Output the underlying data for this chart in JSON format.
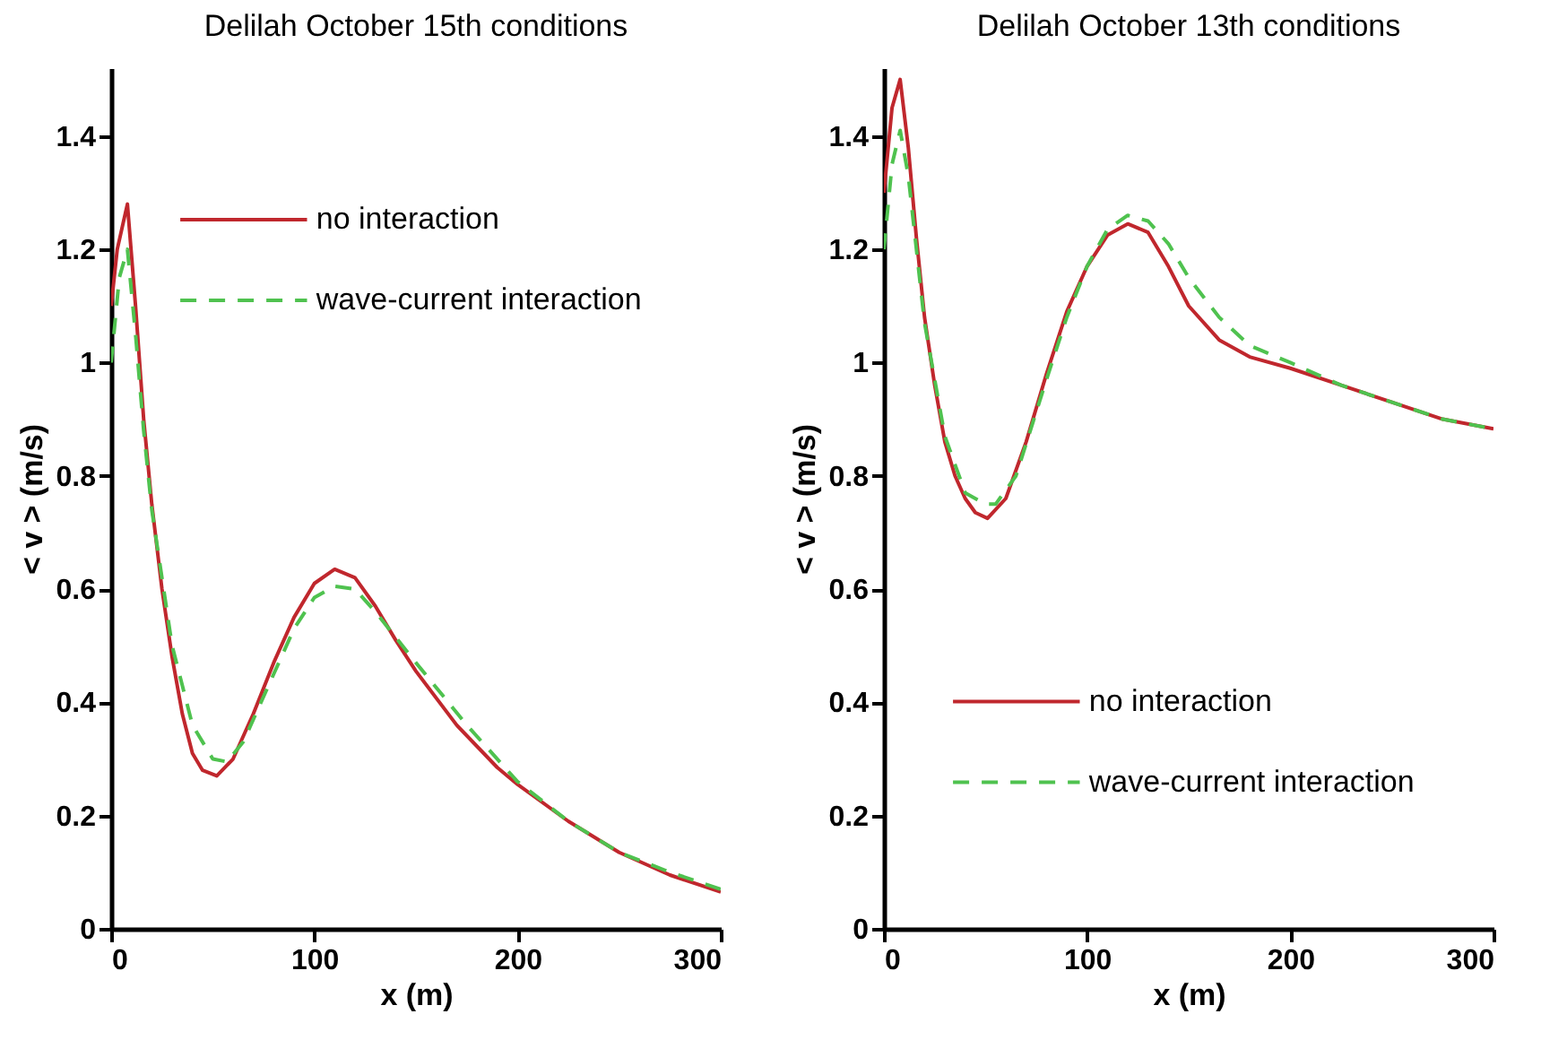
{
  "chart_data": [
    {
      "type": "line",
      "title": "Delilah October 15th conditions",
      "xlabel": "x (m)",
      "ylabel": "< v > (m/s)",
      "xlim": [
        0,
        300
      ],
      "ylim": [
        0,
        1.52
      ],
      "xticks": [
        0,
        100,
        200,
        300
      ],
      "yticks": [
        0,
        0.2,
        0.4,
        0.6,
        0.8,
        1,
        1.2,
        1.4
      ],
      "legend": "top",
      "grid": false,
      "series": [
        {
          "name": "no interaction",
          "color": "#c0272d",
          "line_style": "solid",
          "x": [
            0,
            3,
            8,
            12,
            16,
            20,
            25,
            30,
            35,
            40,
            45,
            52,
            60,
            70,
            80,
            90,
            100,
            110,
            120,
            130,
            140,
            150,
            170,
            190,
            200,
            225,
            250,
            275,
            300
          ],
          "values": [
            1.1,
            1.2,
            1.28,
            1.1,
            0.9,
            0.75,
            0.6,
            0.48,
            0.38,
            0.31,
            0.28,
            0.27,
            0.3,
            0.38,
            0.47,
            0.55,
            0.61,
            0.635,
            0.62,
            0.57,
            0.51,
            0.455,
            0.36,
            0.285,
            0.255,
            0.19,
            0.135,
            0.095,
            0.065
          ]
        },
        {
          "name": "wave-current interaction",
          "color": "#4fc24f",
          "line_style": "dashed",
          "x": [
            0,
            4,
            8,
            12,
            16,
            20,
            30,
            40,
            50,
            57,
            65,
            80,
            90,
            100,
            110,
            120,
            130,
            140,
            150,
            175,
            200,
            225,
            250,
            275,
            300
          ],
          "values": [
            1.0,
            1.15,
            1.2,
            1.05,
            0.88,
            0.74,
            0.5,
            0.36,
            0.3,
            0.295,
            0.33,
            0.45,
            0.53,
            0.585,
            0.605,
            0.6,
            0.56,
            0.515,
            0.47,
            0.36,
            0.26,
            0.19,
            0.135,
            0.1,
            0.07
          ]
        }
      ]
    },
    {
      "type": "line",
      "title": "Delilah October 13th conditions",
      "xlabel": "x (m)",
      "ylabel": "< v > (m/s)",
      "xlim": [
        0,
        300
      ],
      "ylim": [
        0,
        1.52
      ],
      "xticks": [
        0,
        100,
        200,
        300
      ],
      "yticks": [
        0,
        0.2,
        0.4,
        0.6,
        0.8,
        1,
        1.2,
        1.4
      ],
      "legend": "bottom",
      "grid": false,
      "series": [
        {
          "name": "no interaction",
          "color": "#c0272d",
          "line_style": "solid",
          "x": [
            0,
            4,
            8,
            12,
            16,
            20,
            25,
            30,
            35,
            40,
            45,
            51,
            60,
            70,
            80,
            90,
            100,
            110,
            120,
            130,
            140,
            150,
            165,
            180,
            200,
            225,
            250,
            275,
            300
          ],
          "values": [
            1.3,
            1.45,
            1.5,
            1.38,
            1.22,
            1.08,
            0.96,
            0.86,
            0.8,
            0.76,
            0.735,
            0.725,
            0.76,
            0.86,
            0.98,
            1.09,
            1.17,
            1.225,
            1.245,
            1.23,
            1.17,
            1.1,
            1.04,
            1.01,
            0.99,
            0.96,
            0.93,
            0.9,
            0.883
          ]
        },
        {
          "name": "wave-current interaction",
          "color": "#4fc24f",
          "line_style": "dashed",
          "x": [
            0,
            4,
            8,
            12,
            16,
            20,
            30,
            40,
            50,
            55,
            65,
            80,
            90,
            100,
            110,
            120,
            130,
            140,
            150,
            165,
            180,
            200,
            225,
            250,
            275,
            300
          ],
          "values": [
            1.2,
            1.35,
            1.41,
            1.33,
            1.2,
            1.07,
            0.87,
            0.77,
            0.75,
            0.75,
            0.8,
            0.97,
            1.08,
            1.17,
            1.235,
            1.26,
            1.25,
            1.21,
            1.15,
            1.08,
            1.03,
            1.0,
            0.96,
            0.93,
            0.9,
            0.883
          ]
        }
      ]
    }
  ]
}
